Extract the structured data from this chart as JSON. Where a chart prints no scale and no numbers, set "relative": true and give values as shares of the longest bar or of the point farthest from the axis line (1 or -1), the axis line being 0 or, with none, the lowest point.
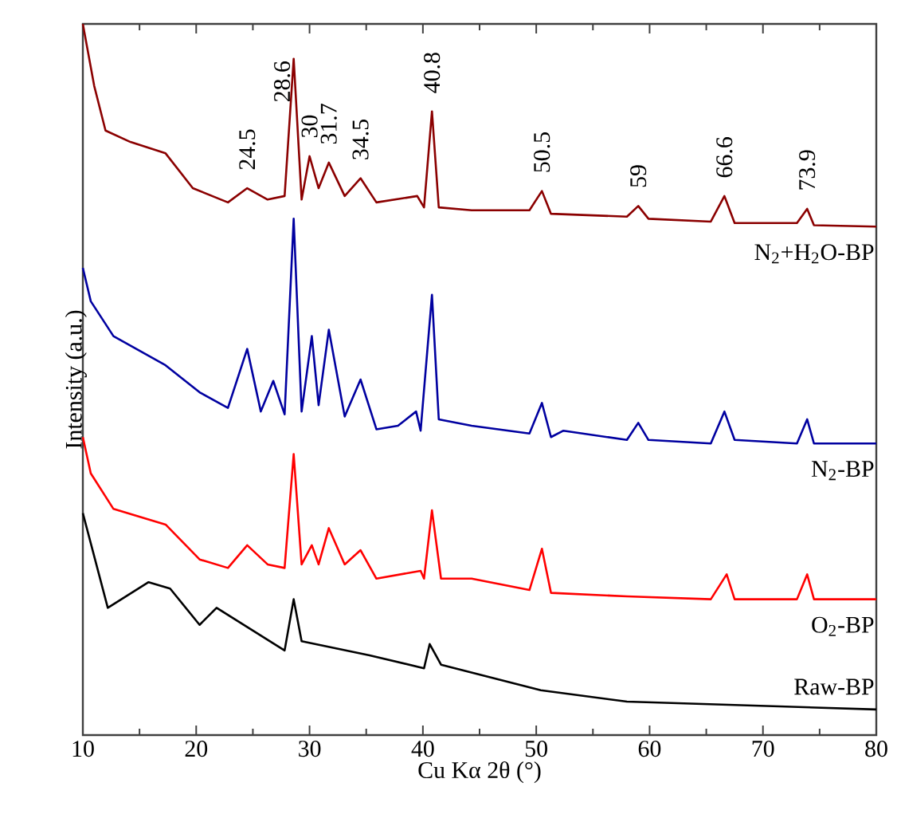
{
  "chart_data": {
    "type": "line",
    "relative": true,
    "xlabel": "Cu Kα 2θ (°)",
    "ylabel": "Intensity (a.u.)",
    "xlim": [
      10,
      80
    ],
    "xticks": [
      10,
      20,
      30,
      40,
      50,
      60,
      70,
      80
    ],
    "grid": false,
    "legend": false,
    "marker": "none",
    "line_style": "solid",
    "series": [
      {
        "name": "N$_{2}$+H$_{2}$O-BP",
        "color": "#8b0000",
        "x": [
          10,
          11,
          12,
          14.2,
          17.3,
          19.7,
          22.8,
          24.5,
          26.3,
          27.8,
          28.6,
          29.3,
          30,
          30.8,
          31.7,
          33.1,
          34.5,
          35.9,
          39.5,
          40.1,
          40.8,
          41.4,
          44.3,
          49.4,
          50.5,
          51.3,
          58,
          59,
          59.9,
          65.4,
          66.6,
          67.5,
          73,
          73.9,
          74.5,
          80
        ],
        "values": [
          1.0,
          0.913,
          0.85,
          0.834,
          0.818,
          0.769,
          0.749,
          0.769,
          0.753,
          0.758,
          0.951,
          0.753,
          0.814,
          0.769,
          0.805,
          0.758,
          0.783,
          0.749,
          0.758,
          0.742,
          0.877,
          0.742,
          0.738,
          0.738,
          0.765,
          0.733,
          0.729,
          0.744,
          0.726,
          0.722,
          0.758,
          0.72,
          0.72,
          0.74,
          0.717,
          0.715
        ]
      },
      {
        "name": "N$_{2}$-BP",
        "color": "#0000a0",
        "x": [
          10,
          10.7,
          12.7,
          17.3,
          20.3,
          22.8,
          24.5,
          25.7,
          26.8,
          27.8,
          28.6,
          29.3,
          30.2,
          30.8,
          31.7,
          33.1,
          34.5,
          35.9,
          37.8,
          39.4,
          39.8,
          40.8,
          41.4,
          44.3,
          49.4,
          50.5,
          51.3,
          52.4,
          58,
          59,
          59.9,
          65.4,
          66.6,
          67.5,
          73,
          73.9,
          74.5,
          80
        ],
        "values": [
          0.657,
          0.61,
          0.561,
          0.52,
          0.482,
          0.46,
          0.543,
          0.455,
          0.498,
          0.451,
          0.726,
          0.455,
          0.561,
          0.464,
          0.57,
          0.448,
          0.5,
          0.43,
          0.435,
          0.455,
          0.428,
          0.619,
          0.444,
          0.435,
          0.424,
          0.467,
          0.419,
          0.428,
          0.415,
          0.439,
          0.415,
          0.41,
          0.455,
          0.415,
          0.41,
          0.444,
          0.41,
          0.41
        ]
      },
      {
        "name": "O$_{2}$-BP",
        "color": "#ff0000",
        "x": [
          10,
          10.7,
          12.7,
          17.3,
          20.3,
          22.8,
          24.5,
          26.3,
          27.8,
          28.6,
          29.3,
          30.2,
          30.8,
          31.7,
          33.1,
          34.5,
          35.9,
          39.8,
          40.1,
          40.8,
          41.6,
          44.3,
          49.4,
          50.5,
          51.3,
          58,
          65.4,
          66.8,
          67.5,
          73,
          73.9,
          74.5,
          80
        ],
        "values": [
          0.419,
          0.368,
          0.318,
          0.296,
          0.247,
          0.235,
          0.267,
          0.24,
          0.235,
          0.395,
          0.24,
          0.267,
          0.24,
          0.291,
          0.24,
          0.26,
          0.22,
          0.231,
          0.22,
          0.316,
          0.22,
          0.22,
          0.204,
          0.262,
          0.2,
          0.195,
          0.191,
          0.226,
          0.191,
          0.191,
          0.226,
          0.191,
          0.191
        ]
      },
      {
        "name": "Raw-BP",
        "color": "#000000",
        "x": [
          10,
          12.2,
          15.8,
          17.7,
          20.3,
          21.8,
          27.8,
          28.6,
          29.3,
          35.3,
          40.1,
          40.6,
          41.6,
          50.4,
          58,
          80
        ],
        "values": [
          0.312,
          0.179,
          0.215,
          0.206,
          0.155,
          0.179,
          0.119,
          0.191,
          0.132,
          0.112,
          0.094,
          0.128,
          0.099,
          0.063,
          0.047,
          0.036
        ]
      }
    ],
    "annotations": [
      {
        "text": "24.5",
        "x": 24.5,
        "y": 0.769
      },
      {
        "text": "28.6",
        "x": 28.6,
        "y": 0.951
      },
      {
        "text": "30",
        "x": 30,
        "y": 0.814
      },
      {
        "text": "31.7",
        "x": 31.7,
        "y": 0.805
      },
      {
        "text": "34.5",
        "x": 34.5,
        "y": 0.783
      },
      {
        "text": "40.8",
        "x": 40.8,
        "y": 0.877
      },
      {
        "text": "50.5",
        "x": 50.5,
        "y": 0.765
      },
      {
        "text": "59",
        "x": 59,
        "y": 0.744
      },
      {
        "text": "66.6",
        "x": 66.6,
        "y": 0.758
      },
      {
        "text": "73.9",
        "x": 73.9,
        "y": 0.74
      }
    ]
  }
}
